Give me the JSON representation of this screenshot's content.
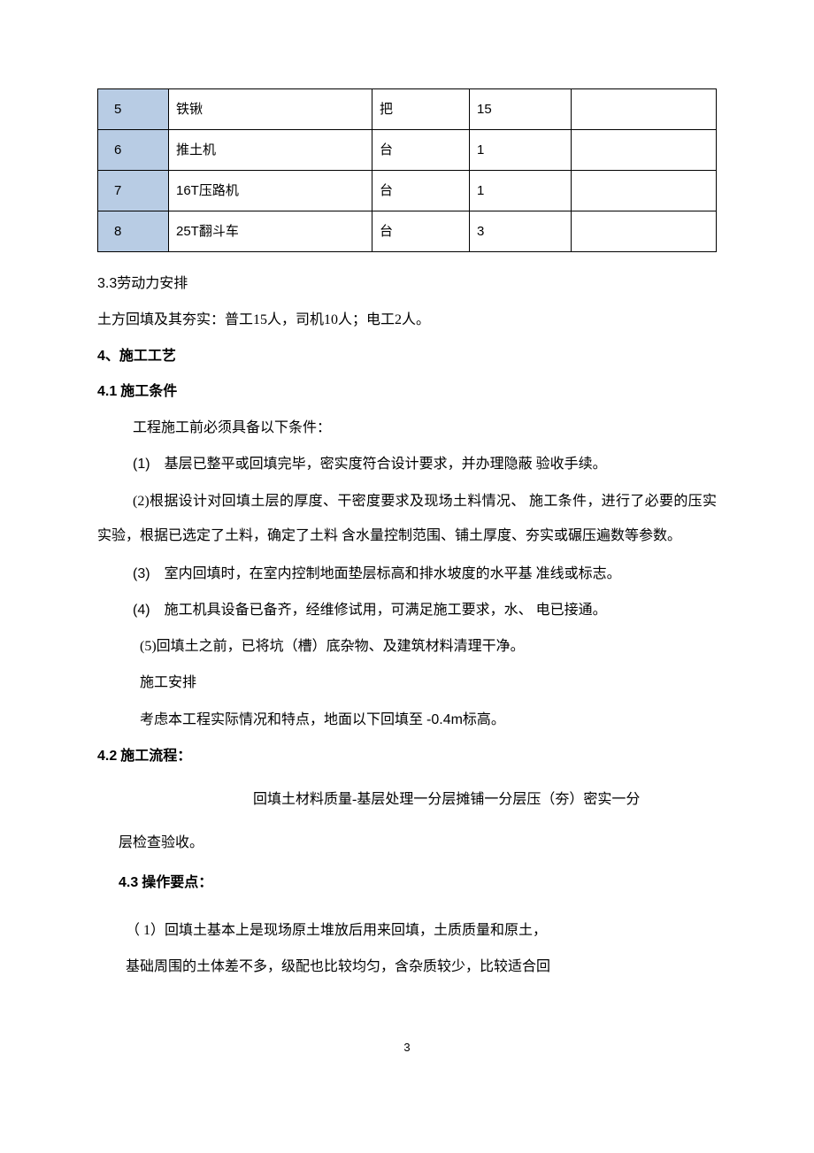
{
  "table": {
    "header_bg": "#b8cce4",
    "border_color": "#000000",
    "rows": [
      {
        "idx": "5",
        "name": "铁锹",
        "unit": "把",
        "qty": "15",
        "remark": ""
      },
      {
        "idx": "6",
        "name": "推土机",
        "unit": "台",
        "qty": "1",
        "remark": ""
      },
      {
        "idx": "7",
        "name": "16T压路机",
        "unit": "台",
        "qty": "1",
        "remark": ""
      },
      {
        "idx": "8",
        "name": "25T翻斗车",
        "unit": "台",
        "qty": "3",
        "remark": ""
      }
    ]
  },
  "s33_title": "3.3劳动力安排",
  "s33_body": "土方回填及其夯实：普工15人，司机10人；电工2人。",
  "s4_title_num": "4",
  "s4_title_txt": "、施工工艺",
  "s41_num": "4.1",
  "s41_txt": " 施工条件",
  "s41_intro": "工程施工前必须具备以下条件：",
  "s41_item1_num": "(1)",
  "s41_item1_txt": "　基层已整平或回填完毕，密实度符合设计要求，并办理隐蔽 验收手续。",
  "s41_item2": "(2)根据设计对回填土层的厚度、干密度要求及现场土料情况、 施工条件，进行了必要的压实实验，根据已选定了土料，确定了土料 含水量控制范围、铺土厚度、夯实或碾压遍数等参数。",
  "s41_item3_num": "(3)",
  "s41_item3_txt": "　室内回填时，在室内控制地面垫层标高和排水坡度的水平基 准线或标志。",
  "s41_item4_num": "(4)",
  "s41_item4_txt": "　施工机具设备已备齐，经维修试用，可满足施工要求，水、 电已接通。",
  "s41_item5": "(5)回填土之前，已将坑（槽）底杂物、及建筑材料清理干净。",
  "s41_arr": "施工安排",
  "s41_arr2a": "考虑本工程实际情况和特点，地面以下回填至 ",
  "s41_arr2b": "-0.4m",
  "s41_arr2c": "标高。",
  "s42_num": "4.2",
  "s42_txt": " 施工流程：",
  "s42_flow": "回填土材料质量-基层处理一分层摊铺一分层压（夯）密实一分",
  "s42_flow2": "层检查验收。",
  "s43_num": "4.3",
  "s43_txt": " 操作要点：",
  "s43_item1": "（ 1）回填土基本上是现场原土堆放后用来回填，土质质量和原土，",
  "s43_item1b": "基础周围的土体差不多，级配也比较均匀，含杂质较少，比较适合回",
  "page_num": "3"
}
